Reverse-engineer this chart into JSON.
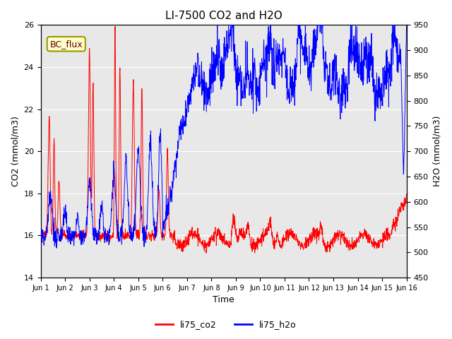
{
  "title": "LI-7500 CO2 and H2O",
  "xlabel": "Time",
  "ylabel_left": "CO2 (mmol/m3)",
  "ylabel_right": "H2O (mmol/m3)",
  "ylim_left": [
    14,
    26
  ],
  "ylim_right": [
    450,
    950
  ],
  "yticks_left": [
    14,
    16,
    18,
    20,
    22,
    24,
    26
  ],
  "yticks_right": [
    450,
    500,
    550,
    600,
    650,
    700,
    750,
    800,
    850,
    900,
    950
  ],
  "xtick_labels": [
    "Jun 1",
    "Jun 2",
    "Jun 3",
    "Jun 4",
    "Jun 5",
    "Jun 6",
    "Jun 7",
    "Jun 8",
    "Jun 9",
    "Jun 10",
    "Jun 11",
    "Jun 12",
    "Jun 13",
    "Jun 14",
    "Jun 15",
    "Jun 16"
  ],
  "legend_labels": [
    "li75_co2",
    "li75_h2o"
  ],
  "legend_colors": [
    "red",
    "blue"
  ],
  "line_co2_color": "red",
  "line_h2o_color": "blue",
  "annotation_text": "BC_flux",
  "annotation_bg": "#ffffcc",
  "annotation_border": "#999900",
  "bg_color": "#e8e8e8",
  "title_fontsize": 11,
  "axis_fontsize": 9,
  "tick_fontsize": 8,
  "figsize": [
    6.4,
    4.8
  ],
  "dpi": 100
}
